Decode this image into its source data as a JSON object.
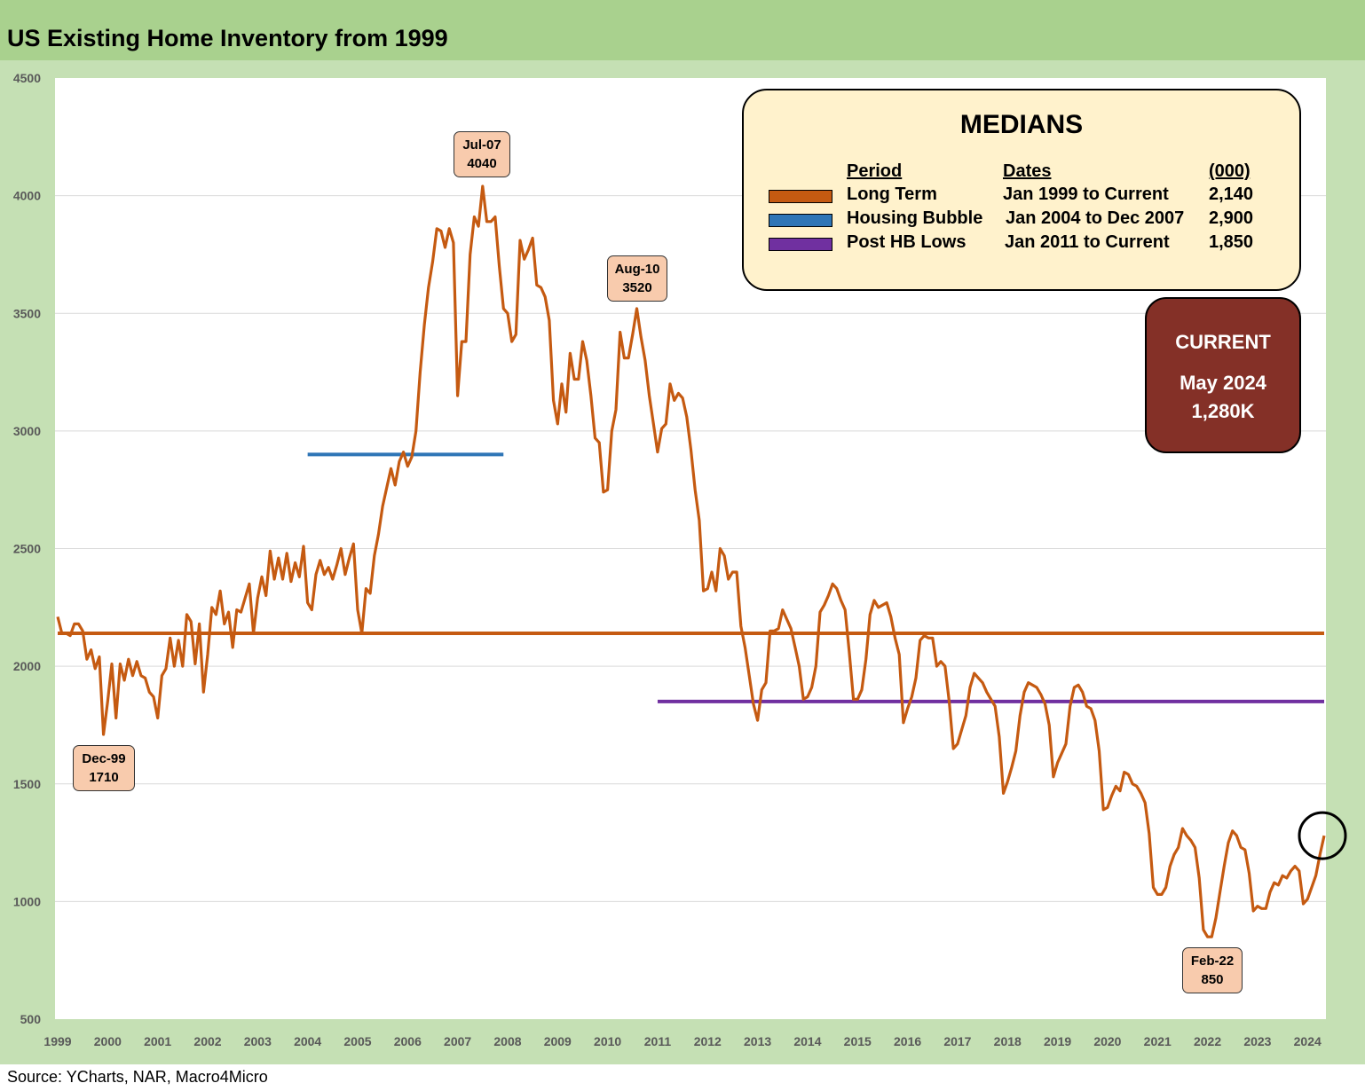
{
  "title": "US Existing Home Inventory from 1999",
  "source": "Source: YCharts, NAR, Macro4Micro",
  "colors": {
    "title_bar": "#a9d18e",
    "frame": "#c5e0b4",
    "series": "#c55a11",
    "long_term": "#c55a11",
    "housing_bubble": "#2e75b6",
    "post_hb_lows": "#7030a0",
    "annotation_fill": "#f8cbad",
    "medians_fill": "#fff2cc",
    "current_fill": "#843027"
  },
  "medians": {
    "title": "MEDIANS",
    "headers": {
      "period": "Period",
      "dates": "Dates",
      "value": "(000)"
    },
    "rows": [
      {
        "period": "Long Term",
        "dates": "Jan 1999 to Current",
        "value": "2,140",
        "color": "#c55a11"
      },
      {
        "period": "Housing Bubble",
        "dates": "Jan 2004 to Dec 2007",
        "value": "2,900",
        "color": "#2e75b6"
      },
      {
        "period": "Post HB Lows",
        "dates": "Jan 2011 to Current",
        "value": "1,850",
        "color": "#7030a0"
      }
    ]
  },
  "current": {
    "title": "CURRENT",
    "period": "May 2024",
    "value": "1,280K"
  },
  "annotations": [
    {
      "date": "Dec-99",
      "value": "1710"
    },
    {
      "date": "Jul-07",
      "value": "4040"
    },
    {
      "date": "Aug-10",
      "value": "3520"
    },
    {
      "date": "Feb-22",
      "value": "850"
    }
  ],
  "chart_data": {
    "type": "line",
    "title": "US Existing Home Inventory from 1999",
    "xlabel": "",
    "ylabel": "",
    "ylim": [
      500,
      4500
    ],
    "yticks": [
      500,
      1000,
      1500,
      2000,
      2500,
      3000,
      3500,
      4000,
      4500
    ],
    "xticks": [
      "1999",
      "2000",
      "2001",
      "2002",
      "2003",
      "2004",
      "2005",
      "2006",
      "2007",
      "2008",
      "2009",
      "2010",
      "2011",
      "2012",
      "2013",
      "2014",
      "2015",
      "2016",
      "2017",
      "2018",
      "2019",
      "2020",
      "2021",
      "2022",
      "2023",
      "2024"
    ],
    "grid": "horizontal",
    "reference_lines": [
      {
        "name": "Long Term",
        "value": 2140,
        "start": "Jan 1999",
        "end": "May 2024",
        "color": "#c55a11"
      },
      {
        "name": "Housing Bubble",
        "value": 2900,
        "start": "Jan 2004",
        "end": "Dec 2007",
        "color": "#2e75b6"
      },
      {
        "name": "Post HB Lows",
        "value": 1850,
        "start": "Jan 2011",
        "end": "May 2024",
        "color": "#7030a0"
      }
    ],
    "highlight": {
      "date": "May 2024",
      "value": 1280
    },
    "series": [
      {
        "start": "1999-01",
        "values": [
          2210,
          2140,
          2140,
          2130,
          2180,
          2180,
          2150,
          2030,
          2070,
          1990,
          2040,
          1710,
          1850,
          2010,
          1780,
          2010,
          1940,
          2030,
          1960,
          2020,
          1960,
          1950,
          1890,
          1870,
          1780,
          1960,
          1990,
          2120,
          2000,
          2110,
          2000,
          2220,
          2190,
          2010,
          2180,
          1890,
          2050,
          2250,
          2220,
          2320,
          2180,
          2230,
          2080,
          2240,
          2230,
          2290,
          2350,
          2140,
          2290,
          2380,
          2300,
          2490,
          2370,
          2460,
          2370,
          2480,
          2360,
          2440,
          2380,
          2510,
          2270,
          2240,
          2390,
          2450,
          2390,
          2420,
          2370,
          2430,
          2500,
          2390,
          2460,
          2520,
          2240,
          2140,
          2330,
          2310,
          2470,
          2560,
          2680,
          2760,
          2840,
          2770,
          2870,
          2910,
          2850,
          2890,
          3000,
          3250,
          3450,
          3610,
          3720,
          3860,
          3850,
          3780,
          3860,
          3800,
          3150,
          3380,
          3380,
          3750,
          3910,
          3870,
          4040,
          3890,
          3890,
          3910,
          3700,
          3520,
          3500,
          3380,
          3410,
          3810,
          3730,
          3770,
          3820,
          3620,
          3610,
          3570,
          3470,
          3130,
          3030,
          3200,
          3080,
          3330,
          3220,
          3220,
          3380,
          3300,
          3150,
          2970,
          2950,
          2740,
          2750,
          3000,
          3090,
          3420,
          3310,
          3310,
          3410,
          3520,
          3400,
          3300,
          3150,
          3030,
          2910,
          3010,
          3030,
          3200,
          3130,
          3160,
          3140,
          3060,
          2920,
          2750,
          2620,
          2320,
          2330,
          2400,
          2320,
          2500,
          2470,
          2370,
          2400,
          2400,
          2170,
          2080,
          1960,
          1840,
          1770,
          1900,
          1930,
          2150,
          2150,
          2160,
          2240,
          2200,
          2160,
          2080,
          2000,
          1860,
          1870,
          1910,
          2000,
          2230,
          2260,
          2300,
          2350,
          2330,
          2280,
          2240,
          2060,
          1860,
          1860,
          1900,
          2030,
          2220,
          2280,
          2250,
          2260,
          2270,
          2210,
          2120,
          2050,
          1760,
          1820,
          1870,
          1950,
          2110,
          2130,
          2120,
          2120,
          2000,
          2020,
          2000,
          1850,
          1650,
          1670,
          1730,
          1790,
          1910,
          1970,
          1950,
          1930,
          1890,
          1860,
          1830,
          1700,
          1460,
          1510,
          1570,
          1640,
          1790,
          1890,
          1930,
          1920,
          1910,
          1880,
          1840,
          1750,
          1530,
          1590,
          1630,
          1670,
          1830,
          1910,
          1920,
          1890,
          1830,
          1820,
          1770,
          1640,
          1390,
          1400,
          1450,
          1490,
          1470,
          1550,
          1540,
          1500,
          1490,
          1460,
          1420,
          1290,
          1060,
          1030,
          1030,
          1060,
          1150,
          1200,
          1230,
          1310,
          1280,
          1260,
          1230,
          1100,
          880,
          850,
          850,
          930,
          1040,
          1150,
          1250,
          1300,
          1280,
          1230,
          1220,
          1120,
          960,
          980,
          970,
          970,
          1040,
          1080,
          1070,
          1110,
          1100,
          1130,
          1150,
          1130,
          990,
          1010,
          1060,
          1110,
          1200,
          1280
        ]
      }
    ]
  }
}
